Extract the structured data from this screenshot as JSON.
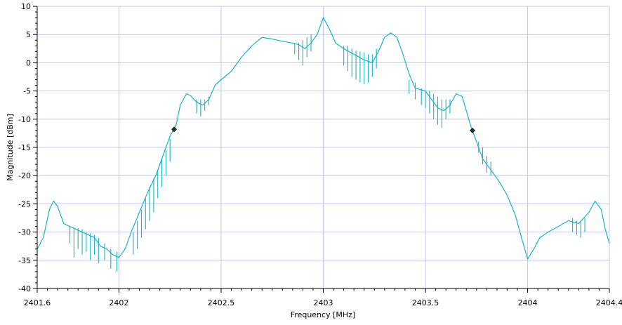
{
  "chart_data": {
    "type": "line",
    "title": "",
    "xlabel": "Frequency [MHz]",
    "ylabel": "Magnitude [dBm]",
    "xlim": [
      2401.6,
      2404.4
    ],
    "ylim": [
      -40,
      10
    ],
    "x_ticks": [
      2401.6,
      2402,
      2402.5,
      2403,
      2403.5,
      2404,
      2404.4
    ],
    "x_tick_labels": [
      "2401.6",
      "2402",
      "2402.5",
      "2403",
      "2403.5",
      "2404",
      "2404.4"
    ],
    "y_ticks": [
      10,
      5,
      0,
      -5,
      -10,
      -15,
      -20,
      -25,
      -30,
      -35,
      -40
    ],
    "y_tick_labels": [
      "10",
      "5",
      "0",
      "-5",
      "-10",
      "-15",
      "-20",
      "-25",
      "-30",
      "-35",
      "-40"
    ],
    "grid": true,
    "series": [
      {
        "color": "#17b3c6",
        "points": [
          [
            2401.6,
            -33
          ],
          [
            2401.63,
            -31
          ],
          [
            2401.66,
            -26
          ],
          [
            2401.68,
            -24.5
          ],
          [
            2401.7,
            -25.5
          ],
          [
            2401.73,
            -28.5
          ],
          [
            2401.76,
            -29
          ],
          [
            2401.79,
            -29.5
          ],
          [
            2401.82,
            -30
          ],
          [
            2401.85,
            -30.5
          ],
          [
            2401.88,
            -31
          ],
          [
            2401.91,
            -32.5
          ],
          [
            2401.94,
            -33
          ],
          [
            2401.97,
            -34
          ],
          [
            2402.0,
            -34.5
          ],
          [
            2402.03,
            -33
          ],
          [
            2402.06,
            -30
          ],
          [
            2402.1,
            -26.5
          ],
          [
            2402.14,
            -23
          ],
          [
            2402.18,
            -20
          ],
          [
            2402.22,
            -16
          ],
          [
            2402.25,
            -13
          ],
          [
            2402.28,
            -11
          ],
          [
            2402.3,
            -7.5
          ],
          [
            2402.33,
            -5.5
          ],
          [
            2402.35,
            -5.8
          ],
          [
            2402.38,
            -7
          ],
          [
            2402.41,
            -7.5
          ],
          [
            2402.44,
            -6.5
          ],
          [
            2402.47,
            -4
          ],
          [
            2402.5,
            -3
          ],
          [
            2402.55,
            -1.5
          ],
          [
            2402.6,
            1
          ],
          [
            2402.65,
            3
          ],
          [
            2402.7,
            4.5
          ],
          [
            2402.75,
            4.2
          ],
          [
            2402.8,
            3.8
          ],
          [
            2402.85,
            3.5
          ],
          [
            2402.88,
            3.2
          ],
          [
            2402.91,
            2.5
          ],
          [
            2402.94,
            3.5
          ],
          [
            2402.97,
            5
          ],
          [
            2403.0,
            8
          ],
          [
            2403.03,
            6
          ],
          [
            2403.06,
            3.5
          ],
          [
            2403.1,
            2.5
          ],
          [
            2403.15,
            1.5
          ],
          [
            2403.2,
            0.5
          ],
          [
            2403.24,
            0
          ],
          [
            2403.27,
            2
          ],
          [
            2403.3,
            4.5
          ],
          [
            2403.33,
            5.3
          ],
          [
            2403.36,
            4.5
          ],
          [
            2403.39,
            1.5
          ],
          [
            2403.42,
            -2
          ],
          [
            2403.45,
            -4.5
          ],
          [
            2403.5,
            -5
          ],
          [
            2403.53,
            -6.5
          ],
          [
            2403.56,
            -8
          ],
          [
            2403.59,
            -8.5
          ],
          [
            2403.62,
            -7.5
          ],
          [
            2403.65,
            -5.5
          ],
          [
            2403.68,
            -6
          ],
          [
            2403.72,
            -11
          ],
          [
            2403.75,
            -14
          ],
          [
            2403.78,
            -17
          ],
          [
            2403.82,
            -19
          ],
          [
            2403.86,
            -21
          ],
          [
            2403.9,
            -23.5
          ],
          [
            2403.94,
            -27
          ],
          [
            2403.97,
            -31
          ],
          [
            2404.0,
            -34.8
          ],
          [
            2404.03,
            -33
          ],
          [
            2404.06,
            -31
          ],
          [
            2404.1,
            -30
          ],
          [
            2404.15,
            -29
          ],
          [
            2404.2,
            -28
          ],
          [
            2404.25,
            -28.5
          ],
          [
            2404.3,
            -26.5
          ],
          [
            2404.33,
            -24.5
          ],
          [
            2404.36,
            -26
          ],
          [
            2404.38,
            -29.5
          ],
          [
            2404.4,
            -32
          ]
        ],
        "spikes": [
          [
            2401.76,
            -29,
            -32
          ],
          [
            2401.78,
            -29.2,
            -34.5
          ],
          [
            2401.8,
            -29.3,
            -33
          ],
          [
            2401.82,
            -29.5,
            -34
          ],
          [
            2401.84,
            -30,
            -33.5
          ],
          [
            2401.86,
            -30.2,
            -35
          ],
          [
            2401.88,
            -30.5,
            -34
          ],
          [
            2401.9,
            -31,
            -35.5
          ],
          [
            2401.93,
            -32,
            -35
          ],
          [
            2401.96,
            -33,
            -36.5
          ],
          [
            2401.99,
            -33.5,
            -37
          ],
          [
            2402.07,
            -30,
            -34
          ],
          [
            2402.09,
            -28,
            -33
          ],
          [
            2402.11,
            -26,
            -31
          ],
          [
            2402.13,
            -24,
            -29.5
          ],
          [
            2402.15,
            -22,
            -28
          ],
          [
            2402.17,
            -20.5,
            -26.5
          ],
          [
            2402.19,
            -19,
            -24
          ],
          [
            2402.21,
            -17,
            -22
          ],
          [
            2402.23,
            -15.5,
            -20
          ],
          [
            2402.25,
            -13.5,
            -17.5
          ],
          [
            2402.38,
            -6.5,
            -9
          ],
          [
            2402.4,
            -6.5,
            -9.5
          ],
          [
            2402.42,
            -6.5,
            -8.5
          ],
          [
            2402.44,
            -6,
            -7.5
          ],
          [
            2402.86,
            3.5,
            1.5
          ],
          [
            2402.88,
            3.5,
            0.5
          ],
          [
            2402.9,
            4,
            -0.5
          ],
          [
            2402.92,
            4.5,
            1
          ],
          [
            2402.94,
            5,
            2
          ],
          [
            2403.1,
            3,
            -0.5
          ],
          [
            2403.12,
            3,
            -1.5
          ],
          [
            2403.14,
            2.5,
            -2.5
          ],
          [
            2403.16,
            2.2,
            -3
          ],
          [
            2403.18,
            2,
            -3.5
          ],
          [
            2403.2,
            1.8,
            -3.8
          ],
          [
            2403.22,
            1.5,
            -3.5
          ],
          [
            2403.24,
            1.5,
            -2.5
          ],
          [
            2403.26,
            2.5,
            -1
          ],
          [
            2403.42,
            -3,
            -5.5
          ],
          [
            2403.45,
            -3.5,
            -6.5
          ],
          [
            2403.48,
            -4.5,
            -7.5
          ],
          [
            2403.5,
            -5,
            -8
          ],
          [
            2403.52,
            -5,
            -9
          ],
          [
            2403.54,
            -5.5,
            -10
          ],
          [
            2403.56,
            -6,
            -11
          ],
          [
            2403.58,
            -6.5,
            -11.5
          ],
          [
            2403.6,
            -6.5,
            -10
          ],
          [
            2403.62,
            -6.5,
            -9
          ],
          [
            2403.76,
            -14,
            -16
          ],
          [
            2403.78,
            -15,
            -18
          ],
          [
            2403.8,
            -16.5,
            -19.5
          ],
          [
            2403.82,
            -17.5,
            -20
          ],
          [
            2404.22,
            -27.5,
            -30
          ],
          [
            2404.24,
            -28,
            -30.5
          ],
          [
            2404.26,
            -28,
            -31
          ],
          [
            2404.28,
            -27.5,
            -30
          ]
        ]
      }
    ],
    "markers": [
      {
        "x": 2402.27,
        "y": -11.8,
        "color": "#1a3d2b"
      },
      {
        "x": 2403.73,
        "y": -12.0,
        "color": "#1a3d2b"
      }
    ]
  }
}
